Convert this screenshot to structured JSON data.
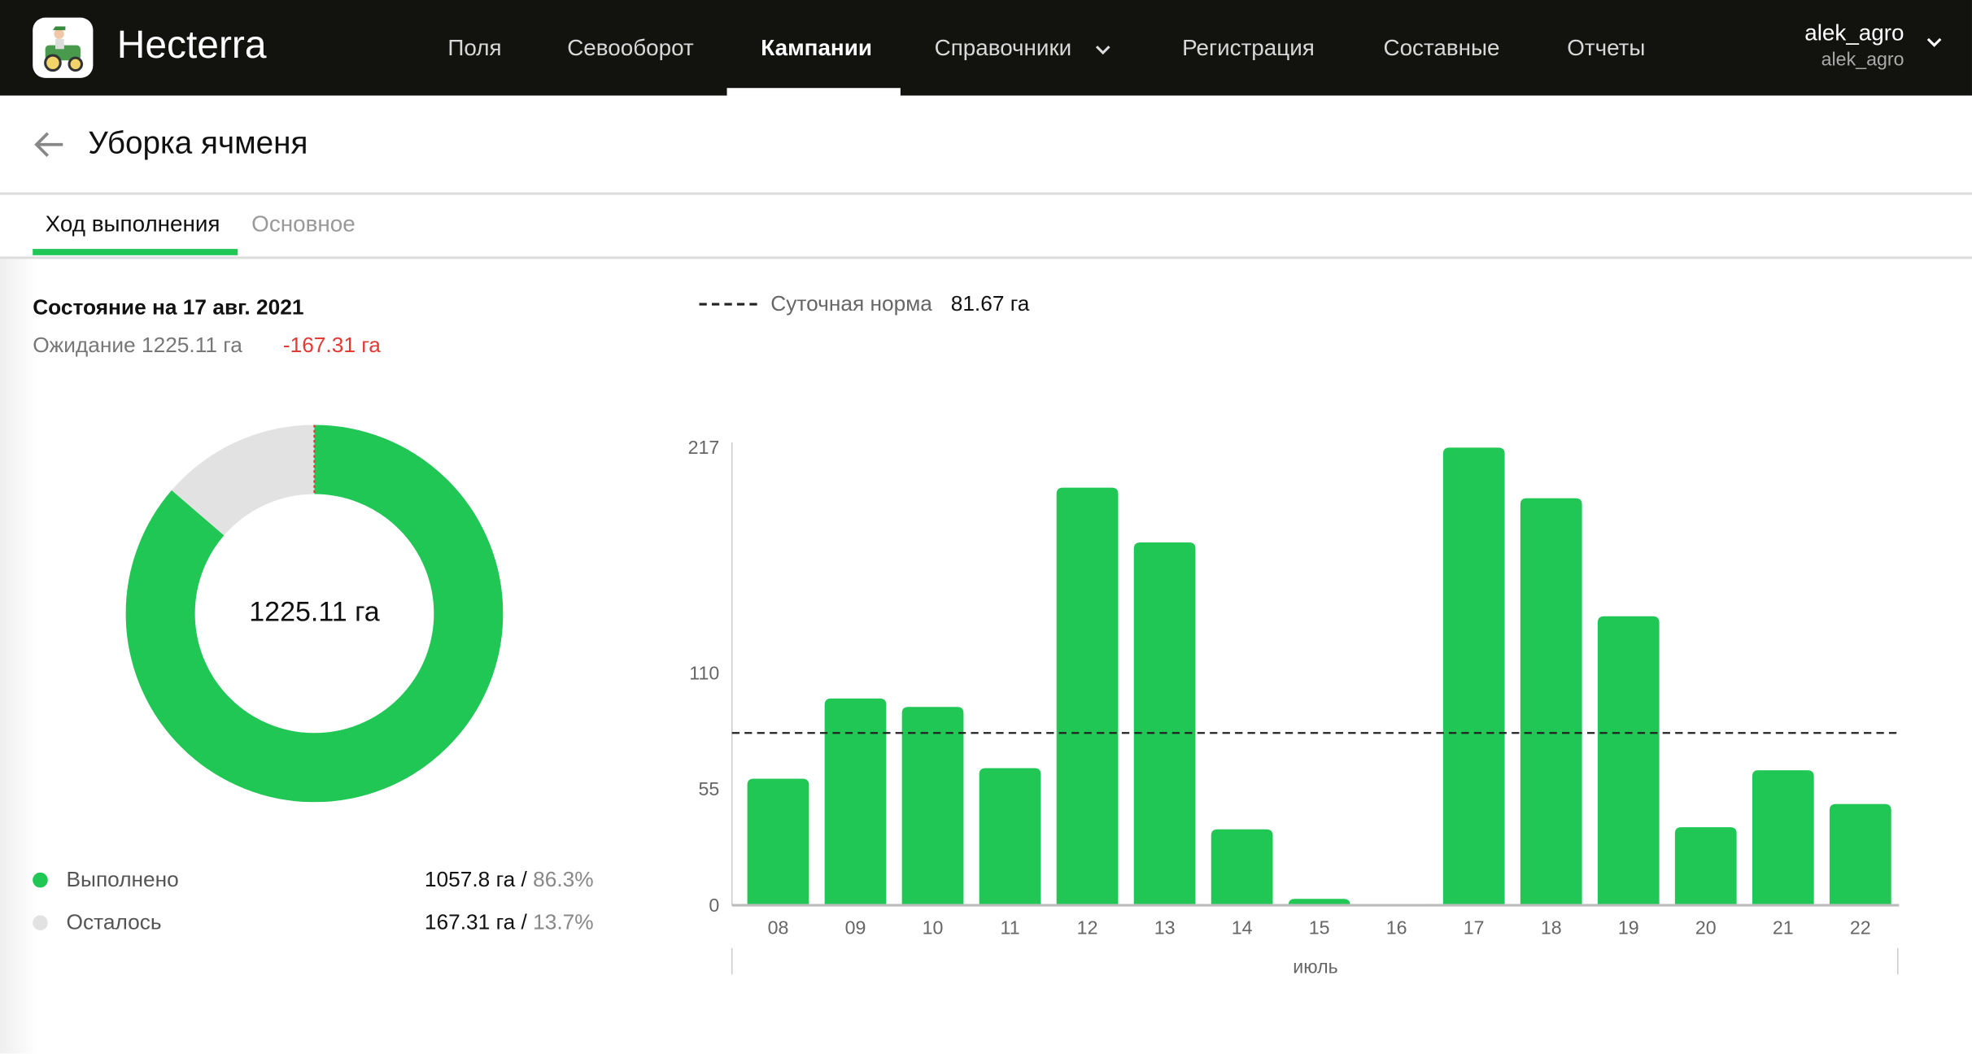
{
  "app": {
    "brand": "Hecterra"
  },
  "nav": {
    "items": [
      {
        "label": "Поля"
      },
      {
        "label": "Севооборот"
      },
      {
        "label": "Кампании",
        "active": true
      },
      {
        "label": "Справочники",
        "has_dropdown": true
      },
      {
        "label": "Регистрация"
      },
      {
        "label": "Составные"
      },
      {
        "label": "Отчеты"
      }
    ],
    "user": {
      "name": "alek_agro",
      "login": "alek_agro"
    }
  },
  "page": {
    "title": "Уборка ячменя"
  },
  "tabs": [
    {
      "label": "Ход выполнения",
      "active": true
    },
    {
      "label": "Основное"
    }
  ],
  "status": {
    "heading": "Состояние на 17 авг. 2021",
    "expected": "Ожидание 1225.11 га",
    "delta": "-167.31 га",
    "delta_color": "#e53935"
  },
  "donut": {
    "center_label": "1225.11 га",
    "legend": [
      {
        "label": "Выполнено",
        "value": "1057.8 га",
        "percent_label": "86.3%",
        "percent": 86.3,
        "color": "#20c755"
      },
      {
        "label": "Осталось",
        "value": "167.31 га",
        "percent_label": "13.7%",
        "percent": 13.7,
        "color": "#e2e2e2"
      }
    ]
  },
  "chart_data": {
    "type": "bar",
    "legend_label": "Суточная норма",
    "legend_value": "81.67 га",
    "norm": 81.67,
    "categories": [
      "08",
      "09",
      "10",
      "11",
      "12",
      "13",
      "14",
      "15",
      "16",
      "17",
      "18",
      "19",
      "20",
      "21",
      "22"
    ],
    "values": [
      60,
      98,
      94,
      65,
      198,
      172,
      36,
      3,
      0,
      217,
      193,
      137,
      37,
      64,
      48
    ],
    "yticks": [
      "0",
      "55",
      "110",
      "217"
    ],
    "ylim": [
      0,
      217
    ],
    "xlabel": "июль",
    "color": "#20c755"
  }
}
